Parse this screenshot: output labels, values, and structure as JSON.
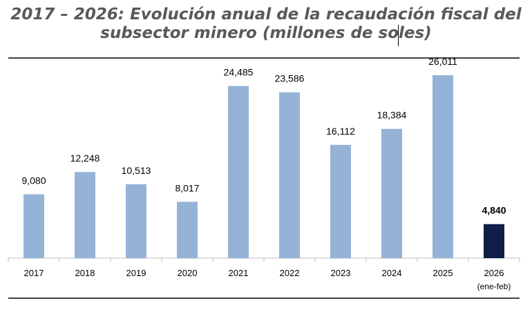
{
  "title": {
    "line1": "2017 – 2026: Evolución anual de la recaudación fiscal del",
    "line2": "subsector minero (millones de soles)"
  },
  "colors": {
    "bar_default": "#95b3d7",
    "bar_highlight": "#0f1f46",
    "title_text": "#595959",
    "axis": "#000000"
  },
  "chart_data": {
    "type": "bar",
    "title": "2017 – 2026: Evolución anual de la recaudación fiscal del subsector minero (millones de soles)",
    "categories": [
      "2017",
      "2018",
      "2019",
      "2020",
      "2021",
      "2022",
      "2023",
      "2024",
      "2025",
      "2026"
    ],
    "category_sublabels": [
      "",
      "",
      "",
      "",
      "",
      "",
      "",
      "",
      "",
      "(ene-feb)"
    ],
    "values": [
      9080,
      12248,
      10513,
      8017,
      24485,
      23586,
      16112,
      18384,
      26011,
      4840
    ],
    "value_labels": [
      "9,080",
      "12,248",
      "10,513",
      "8,017",
      "24,485",
      "23,586",
      "16,112",
      "18,384",
      "26,011",
      "4,840"
    ],
    "highlight_index": 9,
    "ylim": [
      0,
      26011
    ],
    "xlabel": "",
    "ylabel": "",
    "grid": false,
    "legend": "none"
  }
}
